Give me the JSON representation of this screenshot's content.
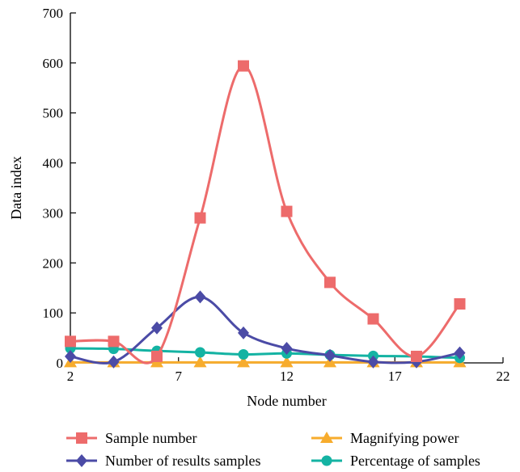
{
  "chart_data": {
    "type": "line",
    "title": "",
    "xlabel": "Node number",
    "ylabel": "Data index",
    "xlim": [
      2,
      22
    ],
    "ylim": [
      0,
      700
    ],
    "xticks": [
      2,
      7,
      12,
      17,
      22
    ],
    "yticks": [
      0,
      100,
      200,
      300,
      400,
      500,
      600,
      700
    ],
    "grid": false,
    "legend_position": "bottom",
    "series": [
      {
        "name": "Sample number",
        "color": "#ed6b6b",
        "marker": "square",
        "x": [
          2,
          4,
          6,
          8,
          10,
          12,
          14,
          16,
          18,
          20
        ],
        "y": [
          43,
          43,
          13,
          290,
          594,
          303,
          161,
          88,
          13,
          118
        ]
      },
      {
        "name": "Magnifying power",
        "color": "#f7ac2d",
        "marker": "triangle",
        "x": [
          2,
          4,
          6,
          8,
          10,
          12,
          14,
          16,
          18,
          20
        ],
        "y": [
          1,
          1,
          1,
          1,
          1,
          1,
          1,
          1,
          1,
          1
        ]
      },
      {
        "name": "Number of results samples",
        "color": "#4b4ba6",
        "marker": "diamond",
        "x": [
          2,
          4,
          6,
          8,
          10,
          12,
          14,
          16,
          18,
          20
        ],
        "y": [
          13,
          2,
          70,
          132,
          60,
          29,
          15,
          2,
          2,
          20
        ]
      },
      {
        "name": "Percentage of samples",
        "color": "#14b3a3",
        "marker": "circle",
        "x": [
          2,
          4,
          6,
          8,
          10,
          12,
          14,
          16,
          18,
          20
        ],
        "y": [
          29,
          28,
          24,
          21,
          17,
          19,
          16,
          14,
          13,
          10
        ]
      }
    ],
    "legend_order": [
      0,
      1,
      2,
      3
    ]
  }
}
